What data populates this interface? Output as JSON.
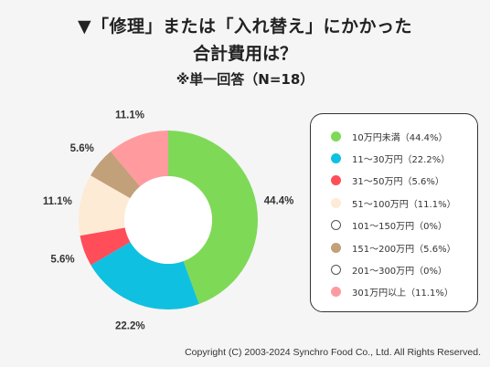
{
  "title": {
    "line1": "▼「修理」または「入れ替え」にかかった",
    "line2": "合計費用は？",
    "line3": "※単一回答（N=18）"
  },
  "chart_data": {
    "type": "pie",
    "donut": true,
    "categories": [
      "10万円未満",
      "11〜30万円",
      "31〜50万円",
      "51〜100万円",
      "101〜150万円",
      "151〜200万円",
      "201〜300万円",
      "301万円以上"
    ],
    "values": [
      44.4,
      22.2,
      5.6,
      11.1,
      0,
      5.6,
      0,
      11.1
    ],
    "data_labels": [
      "44.4%",
      "22.2%",
      "5.6%",
      "11.1%",
      "",
      "5.6%",
      "",
      "11.1%"
    ],
    "colors": [
      "#7ed957",
      "#10c0e0",
      "#ff4d5a",
      "#fdebd5",
      "#ffffff",
      "#c2a07a",
      "#ffffff",
      "#ff9a9e"
    ],
    "legend_labels": [
      "10万円未満（44.4%）",
      "11〜30万円（22.2%）",
      "31〜50万円（5.6%）",
      "51〜100万円（11.1%）",
      "101〜150万円（0%）",
      "151〜200万円（5.6%）",
      "201〜300万円（0%）",
      "301万円以上（11.1%）"
    ],
    "legend_position": "right"
  },
  "copyright": "Copyright (C) 2003-2024  Synchro Food Co., Ltd. All Rights Reserved."
}
